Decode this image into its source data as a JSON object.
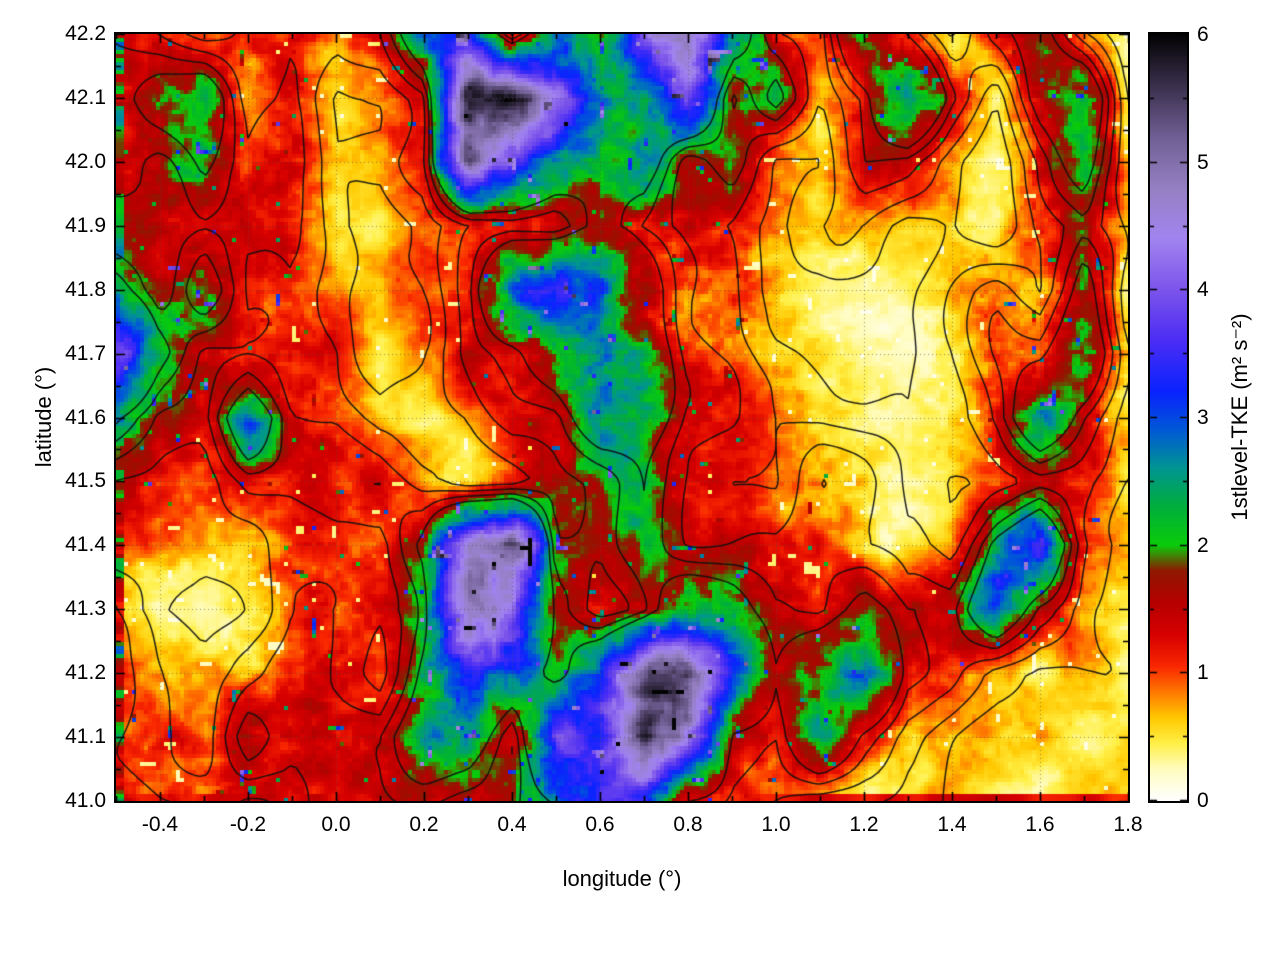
{
  "chart_data": {
    "type": "heatmap",
    "title": "",
    "xlabel": "longitude (°)",
    "ylabel": "latitude (°)",
    "colorbar_label": "1stlevel-TKE (m² s⁻²)",
    "xlim": [
      -0.5,
      1.8
    ],
    "ylim": [
      41.0,
      42.2
    ],
    "clim": [
      0,
      6
    ],
    "grid": true,
    "legend_position": "right-colorbar",
    "x_major_ticks": [
      -0.4,
      -0.2,
      0.0,
      0.2,
      0.4,
      0.6,
      0.8,
      1.0,
      1.2,
      1.4,
      1.6,
      1.8
    ],
    "y_major_ticks": [
      41.0,
      41.1,
      41.2,
      41.3,
      41.4,
      41.5,
      41.6,
      41.7,
      41.8,
      41.9,
      42.0,
      42.1,
      42.2
    ],
    "cb_major_ticks": [
      0,
      1,
      2,
      3,
      4,
      5,
      6
    ],
    "contour_overlay": true,
    "contour_levels": [
      0.55,
      0.85,
      1.15,
      1.45,
      1.75
    ],
    "palette_stops": [
      [
        0.0,
        255,
        255,
        255
      ],
      [
        0.25,
        255,
        252,
        190
      ],
      [
        0.45,
        255,
        240,
        70
      ],
      [
        0.65,
        255,
        200,
        0
      ],
      [
        0.85,
        255,
        120,
        0
      ],
      [
        1.05,
        250,
        40,
        0
      ],
      [
        1.3,
        215,
        0,
        0
      ],
      [
        1.55,
        183,
        0,
        0
      ],
      [
        1.8,
        143,
        25,
        0
      ],
      [
        2.0,
        10,
        205,
        10
      ],
      [
        2.3,
        0,
        175,
        60
      ],
      [
        2.6,
        0,
        150,
        145
      ],
      [
        2.9,
        0,
        90,
        215
      ],
      [
        3.2,
        10,
        35,
        255
      ],
      [
        3.6,
        75,
        45,
        245
      ],
      [
        4.0,
        125,
        85,
        235
      ],
      [
        4.4,
        162,
        132,
        240
      ],
      [
        4.8,
        150,
        128,
        195
      ],
      [
        5.2,
        112,
        95,
        148
      ],
      [
        5.6,
        58,
        48,
        76
      ],
      [
        6.0,
        3,
        3,
        3
      ]
    ],
    "lon": [
      -0.5,
      -0.4,
      -0.3,
      -0.2,
      -0.1,
      0.0,
      0.1,
      0.2,
      0.3,
      0.4,
      0.5,
      0.6,
      0.7,
      0.8,
      0.9,
      1.0,
      1.1,
      1.2,
      1.3,
      1.4,
      1.5,
      1.6,
      1.7,
      1.8
    ],
    "lat": [
      42.2,
      42.1,
      42.0,
      41.9,
      41.8,
      41.7,
      41.6,
      41.5,
      41.4,
      41.3,
      41.2,
      41.1,
      41.0
    ],
    "values": [
      [
        1.2,
        1.0,
        0.7,
        1.1,
        1.2,
        0.8,
        1.1,
        2.5,
        3.5,
        1.3,
        3.0,
        2.5,
        4.5,
        5.0,
        2.5,
        1.3,
        0.9,
        2.8,
        1.4,
        0.4,
        1.2,
        1.8,
        0.8,
        0.3
      ],
      [
        1.3,
        2.0,
        2.4,
        0.8,
        1.2,
        0.5,
        0.7,
        1.2,
        5.5,
        5.8,
        4.5,
        3.2,
        2.4,
        3.5,
        1.4,
        2.2,
        0.8,
        1.3,
        3.0,
        1.4,
        0.5,
        2.0,
        2.6,
        0.4
      ],
      [
        1.4,
        1.4,
        2.0,
        1.2,
        1.3,
        0.6,
        0.7,
        1.2,
        4.8,
        4.0,
        3.0,
        2.2,
        2.6,
        1.4,
        1.9,
        0.8,
        0.5,
        1.3,
        1.2,
        0.7,
        0.4,
        1.3,
        2.2,
        0.6
      ],
      [
        1.3,
        1.4,
        1.5,
        1.3,
        1.2,
        0.6,
        0.4,
        0.8,
        1.3,
        1.4,
        1.3,
        2.0,
        1.5,
        1.3,
        1.2,
        0.8,
        0.7,
        0.7,
        0.5,
        0.7,
        0.4,
        1.2,
        1.4,
        0.6
      ],
      [
        2.2,
        1.3,
        2.4,
        1.2,
        1.2,
        0.7,
        0.6,
        0.8,
        1.3,
        3.0,
        3.4,
        3.2,
        2.2,
        1.3,
        1.2,
        0.7,
        0.4,
        0.4,
        0.5,
        0.8,
        1.2,
        0.8,
        2.0,
        0.4
      ],
      [
        4.0,
        2.2,
        1.3,
        1.3,
        1.2,
        1.1,
        0.3,
        0.7,
        1.2,
        1.4,
        2.2,
        2.8,
        2.4,
        1.3,
        1.2,
        0.8,
        0.6,
        0.4,
        0.4,
        0.7,
        1.3,
        1.4,
        2.4,
        0.7
      ],
      [
        2.2,
        1.4,
        1.3,
        2.6,
        1.3,
        1.2,
        0.6,
        0.4,
        0.7,
        1.3,
        1.4,
        2.4,
        2.2,
        1.3,
        1.2,
        0.8,
        0.7,
        0.5,
        0.4,
        0.7,
        1.3,
        2.6,
        1.4,
        0.6
      ],
      [
        1.3,
        1.2,
        0.9,
        1.2,
        1.1,
        1.2,
        1.3,
        0.8,
        0.5,
        0.8,
        1.3,
        1.5,
        2.0,
        1.3,
        0.9,
        0.7,
        1.1,
        0.8,
        0.4,
        0.5,
        0.9,
        1.2,
        1.1,
        0.6
      ],
      [
        0.9,
        0.8,
        0.7,
        0.8,
        1.2,
        1.2,
        0.9,
        1.8,
        4.5,
        5.0,
        1.5,
        1.3,
        1.8,
        1.3,
        1.2,
        1.1,
        1.2,
        0.8,
        0.5,
        0.8,
        2.4,
        3.4,
        1.3,
        0.7
      ],
      [
        0.8,
        0.4,
        0.3,
        0.7,
        1.2,
        1.1,
        1.3,
        2.0,
        5.0,
        4.0,
        1.4,
        1.0,
        1.3,
        2.0,
        1.8,
        1.3,
        1.2,
        1.8,
        1.3,
        1.4,
        2.8,
        1.4,
        0.8,
        0.7
      ],
      [
        1.1,
        0.8,
        0.7,
        0.9,
        1.3,
        1.2,
        0.9,
        2.2,
        3.0,
        2.4,
        1.4,
        2.6,
        4.5,
        5.5,
        3.0,
        1.4,
        2.2,
        2.8,
        1.3,
        1.2,
        0.8,
        0.6,
        0.6,
        0.5
      ],
      [
        1.2,
        1.1,
        0.9,
        1.8,
        1.2,
        1.3,
        1.4,
        2.4,
        2.6,
        1.4,
        3.6,
        3.0,
        5.5,
        4.5,
        1.4,
        1.2,
        2.4,
        1.3,
        0.8,
        0.7,
        0.6,
        0.6,
        0.5,
        0.5
      ],
      [
        1.3,
        1.2,
        1.3,
        1.2,
        1.3,
        1.2,
        1.3,
        1.4,
        1.3,
        1.5,
        2.0,
        4.0,
        3.5,
        1.5,
        1.2,
        1.0,
        0.8,
        0.7,
        0.6,
        0.6,
        0.5,
        0.5,
        0.5,
        0.5
      ]
    ]
  }
}
